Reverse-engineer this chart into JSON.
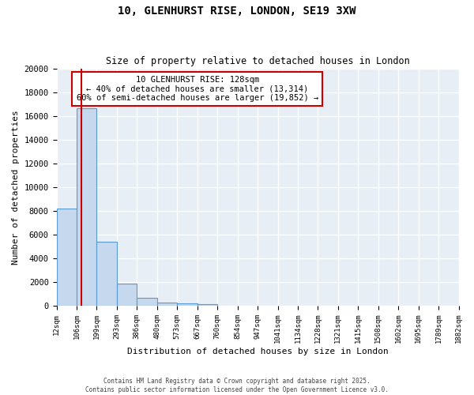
{
  "title_line1": "10, GLENHURST RISE, LONDON, SE19 3XW",
  "title_line2": "Size of property relative to detached houses in London",
  "xlabel": "Distribution of detached houses by size in London",
  "ylabel": "Number of detached properties",
  "bar_heights": [
    8200,
    16700,
    5400,
    1850,
    700,
    300,
    200,
    150,
    0,
    0,
    0,
    0,
    0,
    0,
    0,
    0,
    0,
    0,
    0,
    0
  ],
  "bin_edges": [
    12,
    106,
    199,
    293,
    386,
    480,
    573,
    667,
    760,
    854,
    947,
    1041,
    1134,
    1228,
    1321,
    1415,
    1508,
    1602,
    1695,
    1789,
    1882
  ],
  "bar_color": "#c5d8ed",
  "bar_edge_color": "#5b9bd5",
  "red_line_x": 128,
  "annotation_title": "10 GLENHURST RISE: 128sqm",
  "annotation_line1": "← 40% of detached houses are smaller (13,314)",
  "annotation_line2": "60% of semi-detached houses are larger (19,852) →",
  "annotation_box_color": "#ffffff",
  "annotation_border_color": "#cc0000",
  "red_line_color": "#cc0000",
  "ylim": [
    0,
    20000
  ],
  "yticks": [
    0,
    2000,
    4000,
    6000,
    8000,
    10000,
    12000,
    14000,
    16000,
    18000,
    20000
  ],
  "background_color": "#e8eef5",
  "grid_color": "#ffffff",
  "footer_line1": "Contains HM Land Registry data © Crown copyright and database right 2025.",
  "footer_line2": "Contains public sector information licensed under the Open Government Licence v3.0."
}
